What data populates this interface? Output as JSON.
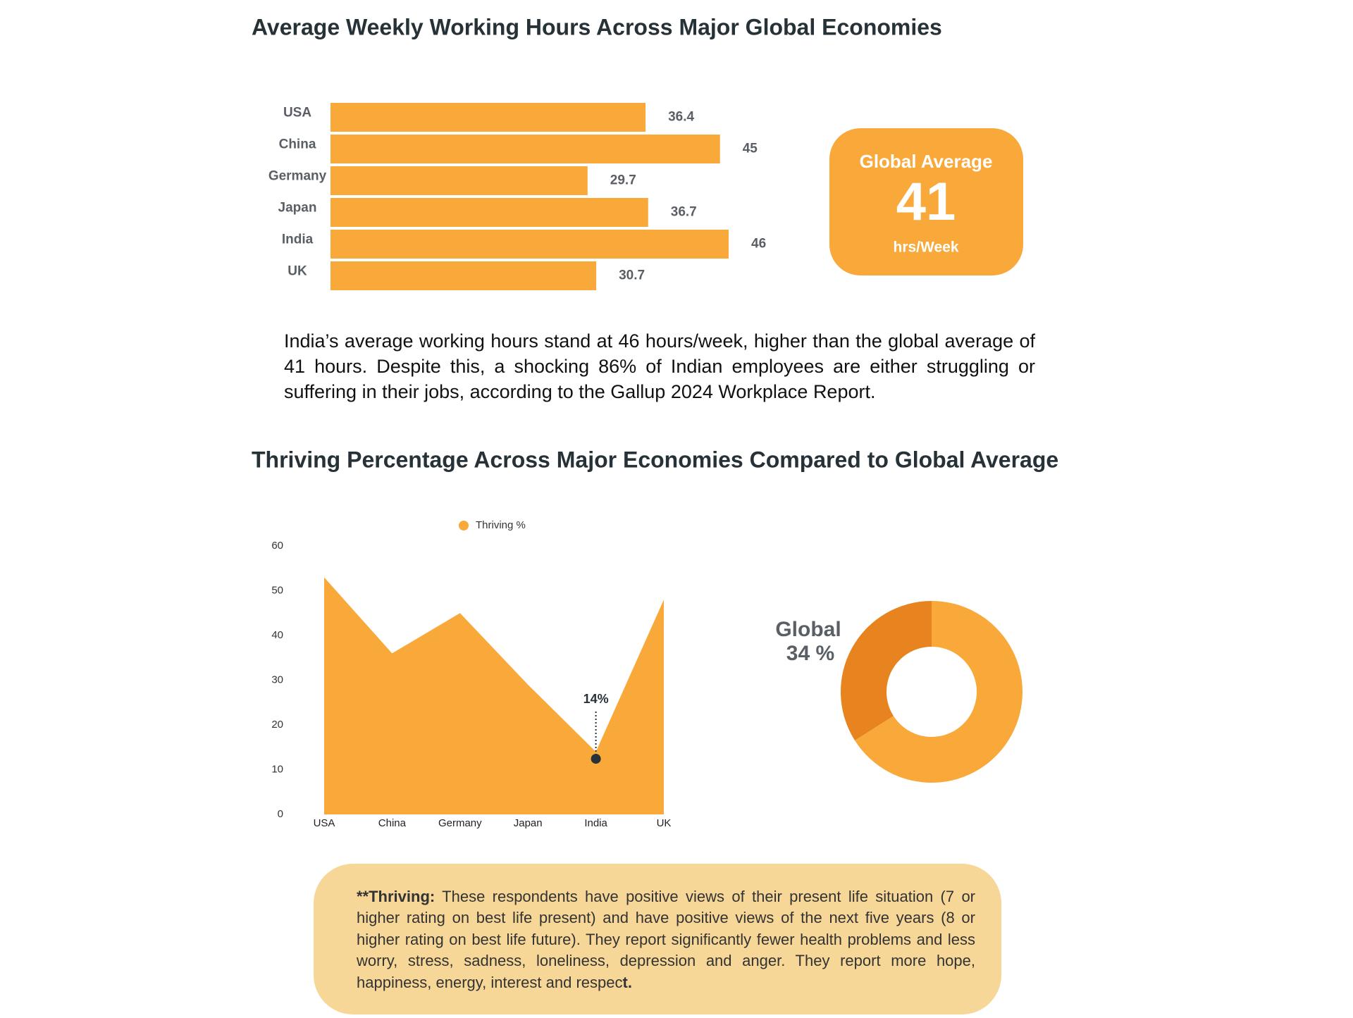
{
  "chart_data": [
    {
      "type": "bar",
      "title": "Average Weekly Working Hours Across Major Global Economies",
      "categories": [
        "USA",
        "China",
        "Germany",
        "Japan",
        "India",
        "UK"
      ],
      "values": [
        36.4,
        45,
        29.7,
        36.7,
        46,
        30.7
      ],
      "color": "#f9a83a"
    },
    {
      "type": "area",
      "title": "Thriving Percentage Across Major Economies Compared to Global Average",
      "categories": [
        "USA",
        "China",
        "Germany",
        "Japan",
        "India",
        "UK"
      ],
      "series": [
        {
          "name": "Thriving %",
          "color": "#f9a83a",
          "values": [
            53,
            36,
            45,
            29,
            14,
            48
          ],
          "value_labels": [
            null,
            null,
            null,
            null,
            "14%",
            null
          ]
        }
      ],
      "ylim": [
        0,
        60
      ],
      "yticks": [
        0,
        10,
        20,
        30,
        40,
        50,
        60
      ],
      "grid": false
    },
    {
      "type": "donut",
      "title": "Global",
      "values": [
        34,
        66
      ],
      "value_labels": [
        "34 %",
        null
      ],
      "colors": [
        "#e8841f",
        "#f9a83a"
      ]
    }
  ],
  "callout": {
    "title": "Global Average",
    "value": 41,
    "unit": "hrs/Week"
  },
  "paragraph": "India’s average working hours stand at 46 hours/week, higher than the global average of 41 hours. Despite this, a shocking 86% of Indian employees are either struggling or suffering in their jobs, according to the Gallup 2024 Workplace Report.",
  "note": {
    "term": "**Thriving:",
    "text": " These respondents have positive views of their present life situation (7 or higher rating on best life present) and have positive views of the next five years (8 or higher rating on best life future). They report significantly fewer health problems and less worry, stress, sadness, loneliness, depression and anger. They report more hope, happiness, energy, interest and respec",
    "end": "t."
  }
}
